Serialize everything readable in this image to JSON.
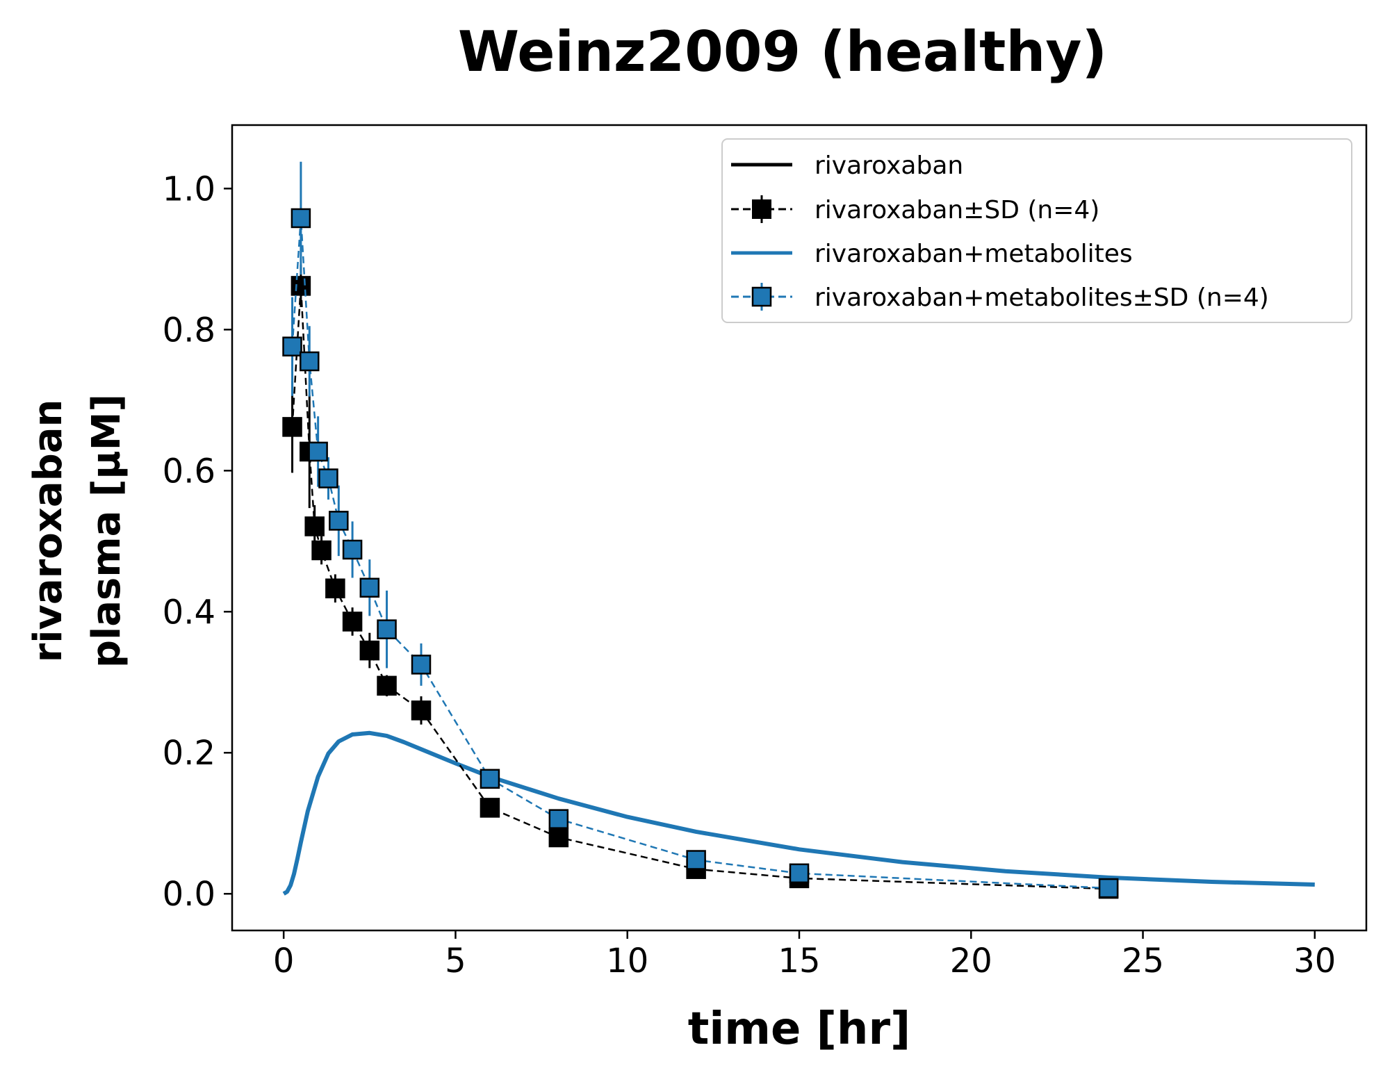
{
  "chart_data": {
    "type": "line",
    "title": "Weinz2009 (healthy)",
    "xlabel": "time [hr]",
    "ylabel_line1": "rivaroxaban",
    "ylabel_line2": "plasma [µM]",
    "xlim": [
      -1.5,
      31.5
    ],
    "ylim": [
      -0.052,
      1.09
    ],
    "xticks": [
      0,
      5,
      10,
      15,
      20,
      25,
      30
    ],
    "xtick_labels": [
      "0",
      "5",
      "10",
      "15",
      "20",
      "25",
      "30"
    ],
    "yticks": [
      0.0,
      0.2,
      0.4,
      0.6,
      0.8,
      1.0
    ],
    "ytick_labels": [
      "0.0",
      "0.2",
      "0.4",
      "0.6",
      "0.8",
      "1.0"
    ],
    "legend_position": "top-right",
    "colors": {
      "black": "#000000",
      "blue": "#1f77b4"
    },
    "series": [
      {
        "name": "rivaroxaban",
        "kind": "simulation-line",
        "color": "#000000",
        "x": [],
        "y": []
      },
      {
        "name": "rivaroxaban±SD (n=4)",
        "kind": "data-errorbar",
        "color": "#000000",
        "x": [
          0.25,
          0.5,
          0.75,
          0.9,
          1.1,
          1.5,
          2.0,
          2.5,
          3.0,
          4.0,
          6.0,
          8.0,
          12.0,
          15.0,
          24.0
        ],
        "y": [
          0.662,
          0.862,
          0.627,
          0.521,
          0.487,
          0.433,
          0.386,
          0.345,
          0.295,
          0.26,
          0.122,
          0.08,
          0.035,
          0.022,
          0.007
        ],
        "sd": [
          0.065,
          0.03,
          0.08,
          0.03,
          0.02,
          0.02,
          0.02,
          0.025,
          0.015,
          0.02,
          0.01,
          0.01,
          0.005,
          0.005,
          0.003
        ]
      },
      {
        "name": "rivaroxaban+metabolites",
        "kind": "simulation-line",
        "color": "#1f77b4",
        "x": [
          0,
          0.1,
          0.2,
          0.3,
          0.4,
          0.5,
          0.7,
          1.0,
          1.3,
          1.6,
          2.0,
          2.5,
          3.0,
          3.5,
          4.0,
          5.0,
          6.0,
          8.0,
          10.0,
          12.0,
          15.0,
          18.0,
          21.0,
          24.0,
          27.0,
          30.0
        ],
        "y": [
          0.0,
          0.003,
          0.012,
          0.028,
          0.05,
          0.073,
          0.117,
          0.166,
          0.199,
          0.216,
          0.226,
          0.228,
          0.224,
          0.215,
          0.205,
          0.185,
          0.166,
          0.135,
          0.109,
          0.088,
          0.063,
          0.045,
          0.032,
          0.023,
          0.017,
          0.013
        ]
      },
      {
        "name": "rivaroxaban+metabolites±SD (n=4)",
        "kind": "data-errorbar",
        "color": "#1f77b4",
        "x": [
          0.25,
          0.5,
          0.75,
          1.0,
          1.3,
          1.6,
          2.0,
          2.5,
          3.0,
          4.0,
          6.0,
          8.0,
          12.0,
          15.0,
          24.0
        ],
        "y": [
          0.776,
          0.958,
          0.755,
          0.627,
          0.589,
          0.529,
          0.488,
          0.434,
          0.375,
          0.325,
          0.163,
          0.106,
          0.048,
          0.029,
          0.008
        ],
        "sd": [
          0.07,
          0.08,
          0.05,
          0.05,
          0.03,
          0.05,
          0.04,
          0.04,
          0.055,
          0.03,
          0.01,
          0.01,
          0.008,
          0.004,
          0.003
        ]
      }
    ]
  }
}
